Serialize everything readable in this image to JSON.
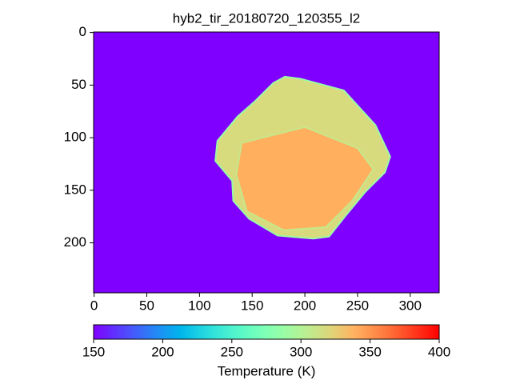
{
  "chart_data": {
    "type": "image",
    "title": "hyb2_tir_20180720_120355_l2",
    "colormap": "rainbow",
    "xlim": [
      -0.5,
      327.5
    ],
    "ylim": [
      247.5,
      -0.5
    ],
    "xticks": [
      0,
      50,
      100,
      150,
      200,
      250,
      300
    ],
    "yticks": [
      0,
      50,
      100,
      150,
      200
    ],
    "image": {
      "background": 150,
      "regions": [
        {
          "value": 318,
          "x": [
            181,
            196,
            237,
            246,
            267,
            281,
            276,
            257,
            238,
            223,
            208,
            174,
            147,
            132,
            131,
            115,
            117,
            136,
            153,
            170
          ],
          "y": [
            42,
            44,
            55,
            65,
            88,
            118,
            133,
            152,
            175,
            194,
            196,
            193,
            177,
            160,
            141,
            122,
            103,
            80,
            65,
            48
          ]
        },
        {
          "value": 340,
          "x": [
            140,
            200,
            250,
            265,
            245,
            220,
            180,
            145,
            135
          ],
          "y": [
            105,
            90,
            110,
            130,
            160,
            185,
            188,
            170,
            135
          ]
        }
      ]
    },
    "colorbar": {
      "label": "Temperature (K)",
      "lim": [
        150,
        400
      ],
      "ticks": [
        150,
        200,
        250,
        300,
        350,
        400
      ]
    }
  }
}
